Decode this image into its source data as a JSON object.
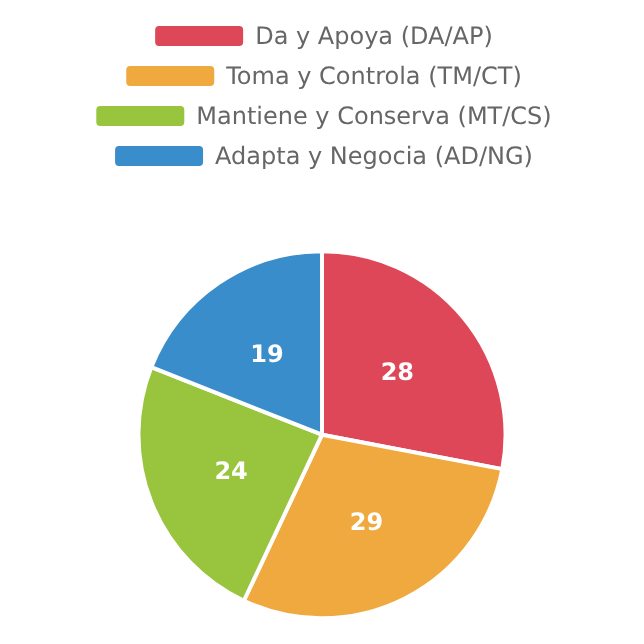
{
  "chart_data": {
    "type": "pie",
    "categories": [
      "Da y Apoya (DA/AP)",
      "Toma y Controla (TM/CT)",
      "Mantiene y Conserva (MT/CS)",
      "Adapta y Negocia (AD/NG)"
    ],
    "values": [
      28,
      29,
      24,
      19
    ],
    "colors": [
      "#de4758",
      "#f0a93e",
      "#98c43e",
      "#3a8dcb"
    ],
    "data_labels": true,
    "legend": "top"
  }
}
